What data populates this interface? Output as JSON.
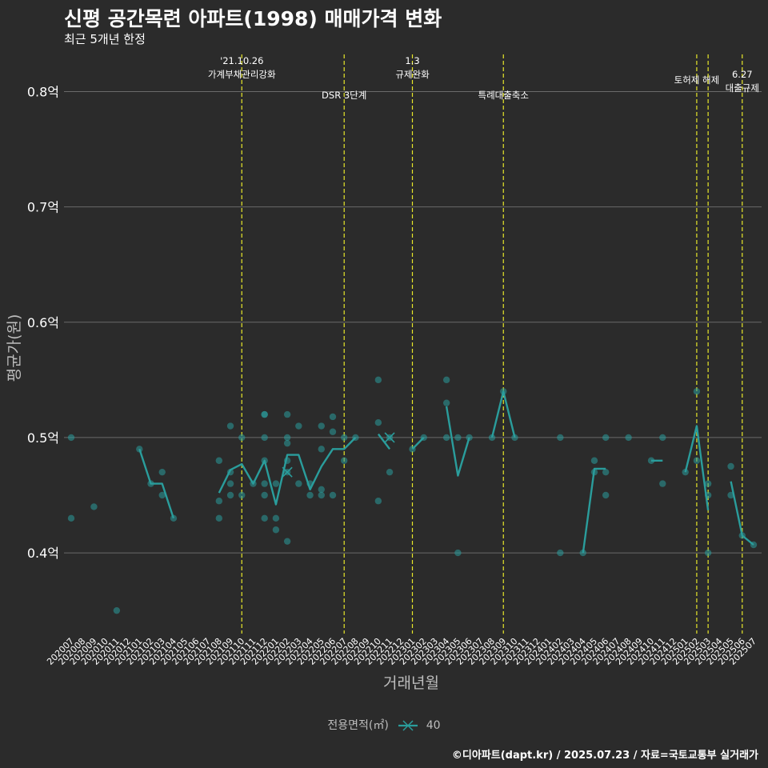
{
  "title": "신평 공간목련 아파트(1998) 매매가격 변화",
  "subtitle": "최근 5개년 한정",
  "caption": "©디아파트(dapt.kr) / 2025.07.23 / 자료=국토교통부 실거래가",
  "legend": {
    "title": "전용면적(㎡)",
    "label": "40"
  },
  "colors": {
    "background": "#2b2b2b",
    "series": "#2a9d9c",
    "event_line": "#e8e82a",
    "grid": "#6a6a6a",
    "text": "#ffffff",
    "axis_text": "#bdbdbd"
  },
  "chart_data": {
    "type": "line",
    "title": "신평 공간목련 아파트(1998) 매매가격 변화",
    "xlabel": "거래년월",
    "ylabel": "평균가(원)",
    "ylim": [
      0.33,
      0.835
    ],
    "y_ticks": [
      0.4,
      0.5,
      0.6,
      0.7,
      0.8
    ],
    "y_tick_labels": [
      "0.4억",
      "0.5억",
      "0.6억",
      "0.7억",
      "0.8억"
    ],
    "categories": [
      "202007",
      "202008",
      "202009",
      "202010",
      "202011",
      "202012",
      "202101",
      "202102",
      "202103",
      "202104",
      "202105",
      "202106",
      "202107",
      "202108",
      "202109",
      "202110",
      "202111",
      "202112",
      "202201",
      "202202",
      "202203",
      "202204",
      "202205",
      "202206",
      "202207",
      "202208",
      "202209",
      "202210",
      "202211",
      "202212",
      "202301",
      "202302",
      "202303",
      "202304",
      "202305",
      "202306",
      "202307",
      "202308",
      "202309",
      "202310",
      "202311",
      "202312",
      "202401",
      "202402",
      "202403",
      "202404",
      "202405",
      "202406",
      "202407",
      "202408",
      "202409",
      "202410",
      "202411",
      "202412",
      "202501",
      "202502",
      "202503",
      "202504",
      "202505",
      "202506",
      "202507"
    ],
    "series": [
      {
        "name": "40",
        "mean_line": [
          [
            [
              6,
              0.49
            ],
            [
              7,
              0.46
            ],
            [
              8,
              0.46
            ],
            [
              9,
              0.43
            ]
          ],
          [
            [
              13,
              0.452
            ],
            [
              14,
              0.472
            ],
            [
              15,
              0.477
            ],
            [
              16,
              0.46
            ],
            [
              17,
              0.48
            ],
            [
              18,
              0.442
            ],
            [
              19,
              0.485
            ],
            [
              20,
              0.485
            ],
            [
              21,
              0.455
            ],
            [
              22,
              0.475
            ],
            [
              23,
              0.49
            ],
            [
              24,
              0.49
            ],
            [
              25,
              0.5
            ]
          ],
          [
            [
              27,
              0.503
            ],
            [
              28,
              0.49
            ]
          ],
          [
            [
              30,
              0.49
            ],
            [
              31,
              0.5
            ]
          ],
          [
            [
              33,
              0.527
            ],
            [
              34,
              0.467
            ],
            [
              35,
              0.5
            ]
          ],
          [
            [
              37,
              0.5
            ],
            [
              38,
              0.54
            ],
            [
              39,
              0.5
            ]
          ],
          [
            [
              45,
              0.4
            ],
            [
              46,
              0.473
            ],
            [
              47,
              0.473
            ]
          ],
          [
            [
              51,
              0.48
            ],
            [
              52,
              0.48
            ]
          ],
          [
            [
              54,
              0.47
            ],
            [
              55,
              0.51
            ],
            [
              56,
              0.437
            ]
          ],
          [
            [
              58,
              0.462
            ],
            [
              59,
              0.415
            ],
            [
              60,
              0.407
            ]
          ]
        ],
        "points": [
          [
            0,
            0.5
          ],
          [
            0,
            0.43
          ],
          [
            2,
            0.44
          ],
          [
            4,
            0.35
          ],
          [
            6,
            0.49
          ],
          [
            7,
            0.46
          ],
          [
            8,
            0.47
          ],
          [
            8,
            0.45
          ],
          [
            9,
            0.43
          ],
          [
            13,
            0.48
          ],
          [
            13,
            0.445
          ],
          [
            13,
            0.43
          ],
          [
            14,
            0.51
          ],
          [
            14,
            0.47
          ],
          [
            14,
            0.46
          ],
          [
            14,
            0.45
          ],
          [
            15,
            0.5
          ],
          [
            15,
            0.45
          ],
          [
            16,
            0.46
          ],
          [
            17,
            0.52
          ],
          [
            17,
            0.52
          ],
          [
            17,
            0.5
          ],
          [
            17,
            0.48
          ],
          [
            17,
            0.46
          ],
          [
            17,
            0.45
          ],
          [
            17,
            0.43
          ],
          [
            18,
            0.46
          ],
          [
            18,
            0.43
          ],
          [
            18,
            0.42
          ],
          [
            19,
            0.52
          ],
          [
            19,
            0.5
          ],
          [
            19,
            0.495
          ],
          [
            19,
            0.48
          ],
          [
            19,
            0.47
          ],
          [
            19,
            0.41
          ],
          [
            20,
            0.51
          ],
          [
            20,
            0.46
          ],
          [
            21,
            0.46
          ],
          [
            21,
            0.45
          ],
          [
            22,
            0.51
          ],
          [
            22,
            0.49
          ],
          [
            22,
            0.455
          ],
          [
            22,
            0.45
          ],
          [
            23,
            0.518
          ],
          [
            23,
            0.505
          ],
          [
            23,
            0.45
          ],
          [
            24,
            0.5
          ],
          [
            24,
            0.48
          ],
          [
            25,
            0.5
          ],
          [
            27,
            0.55
          ],
          [
            27,
            0.513
          ],
          [
            27,
            0.445
          ],
          [
            28,
            0.47
          ],
          [
            28,
            0.5
          ],
          [
            30,
            0.49
          ],
          [
            31,
            0.5
          ],
          [
            33,
            0.55
          ],
          [
            33,
            0.53
          ],
          [
            33,
            0.5
          ],
          [
            34,
            0.5
          ],
          [
            34,
            0.4
          ],
          [
            35,
            0.5
          ],
          [
            37,
            0.5
          ],
          [
            38,
            0.54
          ],
          [
            39,
            0.5
          ],
          [
            43,
            0.5
          ],
          [
            43,
            0.4
          ],
          [
            45,
            0.4
          ],
          [
            46,
            0.48
          ],
          [
            46,
            0.47
          ],
          [
            47,
            0.5
          ],
          [
            47,
            0.47
          ],
          [
            47,
            0.45
          ],
          [
            49,
            0.5
          ],
          [
            51,
            0.48
          ],
          [
            52,
            0.5
          ],
          [
            52,
            0.46
          ],
          [
            54,
            0.47
          ],
          [
            55,
            0.54
          ],
          [
            55,
            0.48
          ],
          [
            56,
            0.46
          ],
          [
            56,
            0.45
          ],
          [
            56,
            0.4
          ],
          [
            58,
            0.475
          ],
          [
            58,
            0.45
          ],
          [
            59,
            0.415
          ],
          [
            60,
            0.407
          ]
        ],
        "cross_markers": [
          [
            19,
            0.47
          ],
          [
            28,
            0.5
          ]
        ]
      }
    ],
    "events": [
      {
        "x": 15,
        "lines": [
          "'21.10.26",
          "가계부채관리강화"
        ],
        "y": 0.815
      },
      {
        "x": 24,
        "lines": [
          "DSR 3단계"
        ],
        "y": 0.797
      },
      {
        "x": 30,
        "lines": [
          "1.3",
          "규제완화"
        ],
        "y": 0.815
      },
      {
        "x": 38,
        "lines": [
          "특례대출축소"
        ],
        "y": 0.797
      },
      {
        "x": 55,
        "lines": [
          "토허제 해제"
        ],
        "y": 0.81
      },
      {
        "x": 56,
        "lines": [],
        "y": 0.81
      },
      {
        "x": 59,
        "lines": [
          "6.27",
          "대출규제"
        ],
        "y": 0.803
      }
    ]
  }
}
